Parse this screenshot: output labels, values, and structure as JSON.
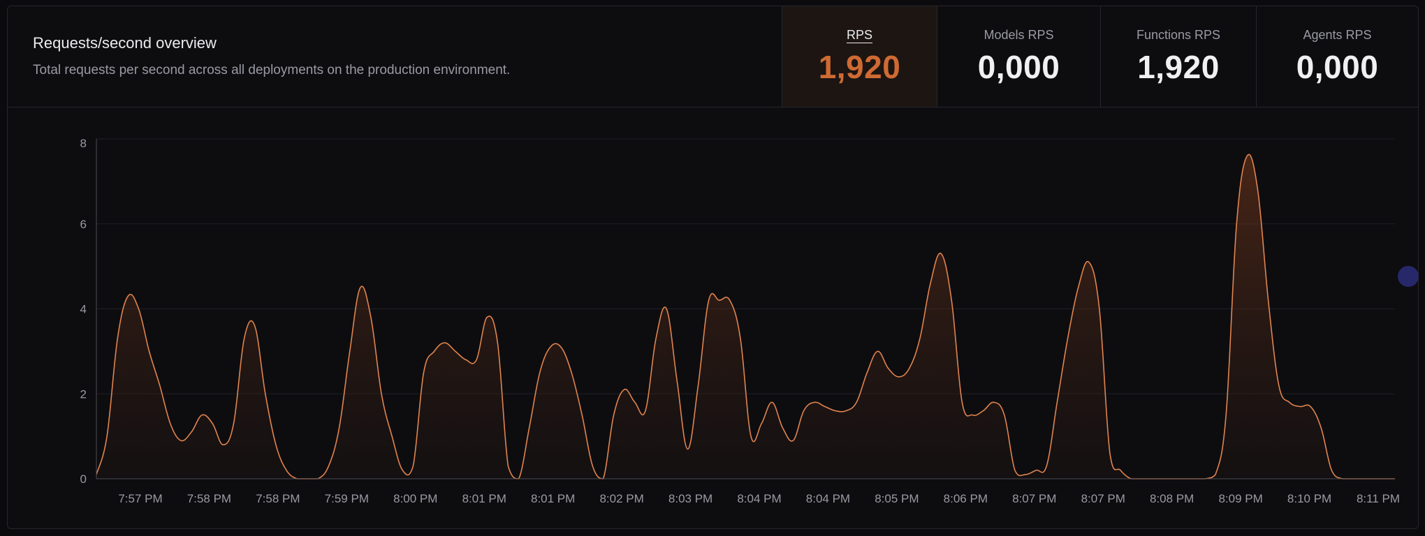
{
  "header": {
    "title": "Requests/second overview",
    "subtitle": "Total requests per second across all deployments on the production environment."
  },
  "stats": [
    {
      "label": "RPS",
      "value": "1,920",
      "active": true
    },
    {
      "label": "Models RPS",
      "value": "0,000",
      "active": false
    },
    {
      "label": "Functions RPS",
      "value": "1,920",
      "active": false
    },
    {
      "label": "Agents RPS",
      "value": "0,000",
      "active": false
    }
  ],
  "colors": {
    "accent": "#cf6a33",
    "line": "#e0844f",
    "grid": "#1f1f25",
    "axis_text": "#9a9aa3",
    "background": "#0d0d10"
  },
  "chart_data": {
    "type": "area",
    "title": "",
    "xlabel": "",
    "ylabel": "",
    "ylim": [
      0,
      8
    ],
    "yticks": [
      0,
      2,
      4,
      6,
      8
    ],
    "grid": true,
    "xticks": [
      "7:57 PM",
      "7:58 PM",
      "7:58 PM",
      "7:59 PM",
      "8:00 PM",
      "8:01 PM",
      "8:01 PM",
      "8:02 PM",
      "8:03 PM",
      "8:04 PM",
      "8:04 PM",
      "8:05 PM",
      "8:06 PM",
      "8:07 PM",
      "8:07 PM",
      "8:08 PM",
      "8:09 PM",
      "8:10 PM",
      "8:11 PM"
    ],
    "series": [
      {
        "values": [
          0.1,
          1.0,
          3.3,
          4.3,
          4.0,
          3.0,
          2.2,
          1.3,
          0.9,
          1.1,
          1.5,
          1.3,
          0.8,
          1.3,
          3.3,
          3.6,
          2.0,
          0.8,
          0.2,
          0,
          0,
          0,
          0.3,
          1.2,
          3.0,
          4.5,
          3.8,
          2.0,
          1.0,
          0.2,
          0.3,
          2.5,
          3.0,
          3.2,
          3.0,
          2.8,
          2.8,
          3.8,
          3.2,
          0.3,
          0,
          1.2,
          2.5,
          3.1,
          3.1,
          2.5,
          1.5,
          0.3,
          0,
          1.5,
          2.1,
          1.8,
          1.6,
          3.3,
          4.0,
          2.3,
          0.7,
          2.2,
          4.2,
          4.2,
          4.2,
          3.3,
          1.0,
          1.3,
          1.8,
          1.2,
          0.9,
          1.6,
          1.8,
          1.7,
          1.6,
          1.6,
          1.8,
          2.5,
          3.0,
          2.6,
          2.4,
          2.6,
          3.3,
          4.6,
          5.3,
          4.2,
          1.8,
          1.5,
          1.6,
          1.8,
          1.5,
          0.2,
          0.1,
          0.2,
          0.3,
          1.8,
          3.3,
          4.5,
          5.1,
          4.0,
          0.6,
          0.2,
          0,
          0,
          0,
          0,
          0,
          0,
          0,
          0,
          0.1,
          1.5,
          6.0,
          7.6,
          6.8,
          4.2,
          2.2,
          1.8,
          1.7,
          1.7,
          1.2,
          0.2,
          0,
          0,
          0,
          0,
          0,
          0
        ]
      }
    ]
  }
}
